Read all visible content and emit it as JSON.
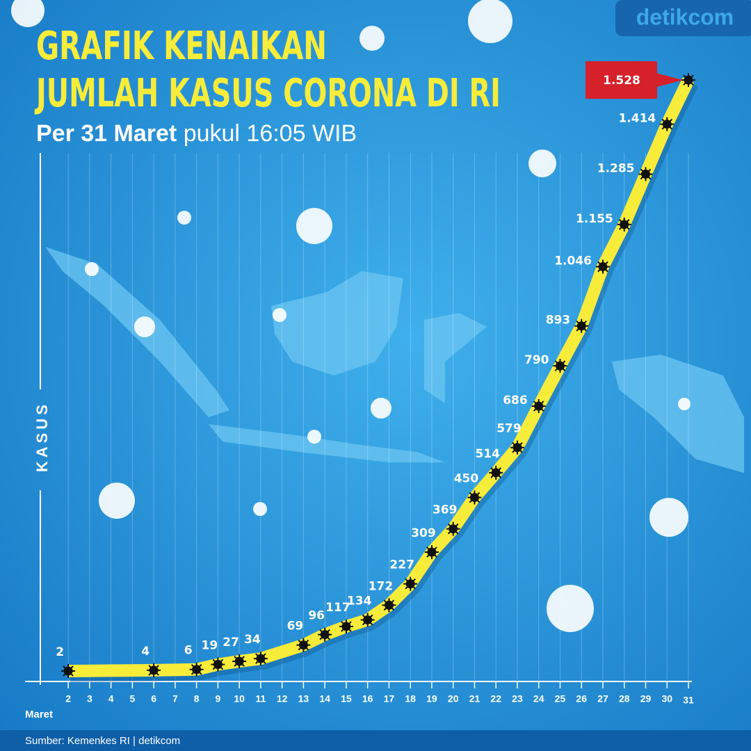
{
  "chart_data": {
    "type": "line",
    "title": [
      "GRAFIK KENAIKAN",
      "JUMLAH KASUS CORONA DI RI"
    ],
    "subtitle": [
      "Per 31 Maret",
      "pukul 16:05 WIB"
    ],
    "y_label": "KASUS",
    "x_label": "Maret",
    "source": "Sumber: Kemenkes RI | detikcom",
    "logo": "detikcom",
    "x": [
      2,
      6,
      8,
      9,
      10,
      11,
      13,
      14,
      15,
      16,
      17,
      18,
      19,
      20,
      21,
      22,
      23,
      24,
      25,
      26,
      27,
      28,
      29,
      30,
      31
    ],
    "series": [
      {
        "color": "#f7ec3a",
        "values": [
          2,
          4,
          6,
          19,
          27,
          34,
          69,
          96,
          117,
          134,
          172,
          227,
          309,
          369,
          450,
          514,
          579,
          686,
          790,
          893,
          1046,
          1155,
          1285,
          1414,
          1528
        ],
        "value_labels": [
          "2",
          "4",
          "6",
          "19",
          "27",
          "34",
          "69",
          "96",
          "117",
          "134",
          "172",
          "227",
          "309",
          "369",
          "450",
          "514",
          "579",
          "686",
          "790",
          "893",
          "1.046",
          "1.155",
          "1.285",
          "1.414",
          "1.528"
        ]
      }
    ],
    "xlim": [
      0,
      31
    ],
    "xticks": [
      2,
      3,
      4,
      5,
      6,
      7,
      8,
      9,
      10,
      11,
      12,
      13,
      14,
      15,
      16,
      17,
      18,
      19,
      20,
      21,
      22,
      23,
      24,
      25,
      26,
      27,
      28,
      29,
      30,
      31
    ],
    "ylim": [
      -25,
      1600
    ],
    "grid": true,
    "highlight_color": "#d6202a"
  }
}
